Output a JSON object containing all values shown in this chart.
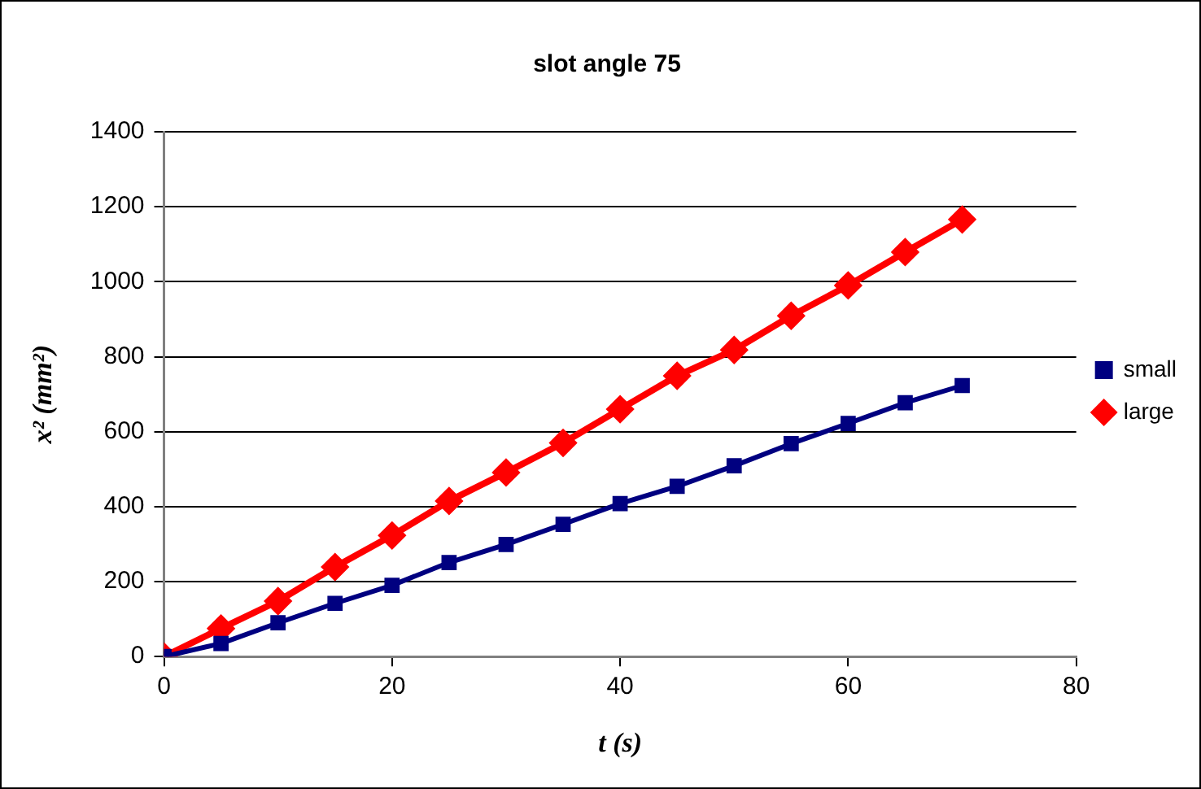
{
  "chart_data": {
    "type": "line",
    "title": "slot angle 75",
    "xlabel": "t (s)",
    "ylabel": "x² (mm²)",
    "x": [
      0,
      5,
      10,
      15,
      20,
      25,
      30,
      35,
      40,
      45,
      50,
      55,
      60,
      65,
      70
    ],
    "series": [
      {
        "name": "small",
        "color": "#000080",
        "marker": "square",
        "values": [
          0,
          35,
          90,
          142,
          190,
          251,
          299,
          353,
          408,
          454,
          509,
          568,
          622,
          677,
          723
        ]
      },
      {
        "name": "large",
        "color": "#ff0000",
        "marker": "diamond",
        "values": [
          0,
          75,
          148,
          239,
          323,
          415,
          491,
          570,
          660,
          749,
          818,
          909,
          990,
          1079,
          1166
        ]
      }
    ],
    "xlim": [
      0,
      80
    ],
    "xticks": [
      0,
      20,
      40,
      60,
      80
    ],
    "ylim": [
      0,
      1400
    ],
    "yticks": [
      0,
      200,
      400,
      600,
      800,
      1000,
      1200,
      1400
    ],
    "grid": "y",
    "legend": "right",
    "line_style": "solid"
  }
}
